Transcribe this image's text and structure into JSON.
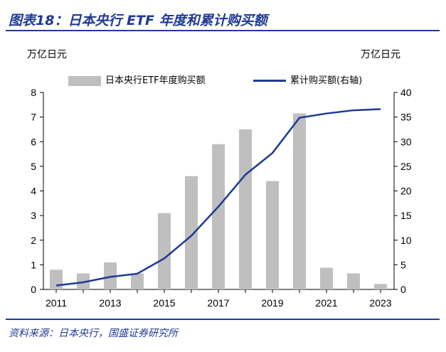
{
  "title": "图表18：日本央行 ETF 年度和累计购买额",
  "source": "资料来源：日本央行，国盛证券研究所",
  "colors": {
    "bar": "#bfbfbf",
    "line": "#1f3a93",
    "frame": "#1f3a93"
  },
  "chart_data": {
    "type": "bar",
    "unit_left": "万亿日元",
    "unit_right": "万亿日元",
    "x": [
      2011,
      2012,
      2013,
      2014,
      2015,
      2016,
      2017,
      2018,
      2019,
      2020,
      2021,
      2022,
      2023
    ],
    "x_tick_labels": [
      "2011",
      "2013",
      "2015",
      "2017",
      "2019",
      "2021",
      "2023"
    ],
    "y_left_ticks": [
      "0",
      "1",
      "2",
      "3",
      "4",
      "5",
      "6",
      "7",
      "8"
    ],
    "y_right_ticks": [
      "0",
      "5",
      "10",
      "15",
      "20",
      "25",
      "30",
      "35",
      "40"
    ],
    "ylim_left": [
      0,
      8
    ],
    "ylim_right": [
      0,
      40
    ],
    "series": [
      {
        "name": "日本央行ETF年度购买额",
        "type": "bar",
        "axis": "left",
        "values": [
          0.8,
          0.65,
          1.1,
          0.65,
          3.1,
          4.6,
          5.9,
          6.5,
          4.4,
          7.15,
          0.88,
          0.65,
          0.22
        ]
      },
      {
        "name": "累计购买额(右轴)",
        "type": "line",
        "axis": "right",
        "values": [
          0.8,
          1.45,
          2.55,
          3.2,
          6.3,
          10.9,
          16.8,
          23.3,
          27.7,
          34.85,
          35.73,
          36.38,
          36.6
        ]
      }
    ]
  }
}
